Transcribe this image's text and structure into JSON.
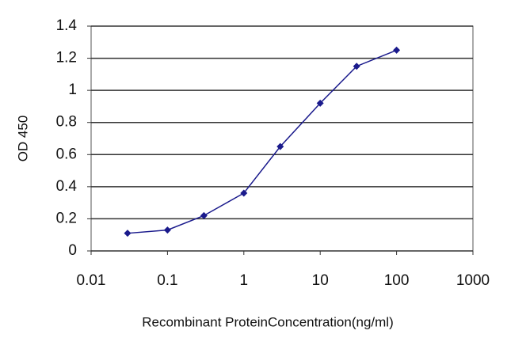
{
  "chart_data": {
    "type": "line",
    "xlabel": "Recombinant ProteinConcentration(ng/ml)",
    "ylabel": "OD 450",
    "xscale": "log",
    "x": [
      0.03,
      0.1,
      0.3,
      1,
      3,
      10,
      30,
      100
    ],
    "series": [
      {
        "color": "#1a1a8c",
        "values": [
          0.11,
          0.13,
          0.22,
          0.36,
          0.65,
          0.92,
          1.15,
          1.25
        ]
      }
    ],
    "xlim": [
      0.01,
      1000
    ],
    "xticks": [
      0.01,
      0.1,
      1,
      10,
      100,
      1000
    ],
    "ylim": [
      0,
      1.4
    ],
    "yticks": [
      0,
      0.2,
      0.4,
      0.6,
      0.8,
      1,
      1.2,
      1.4
    ],
    "grid": true
  }
}
